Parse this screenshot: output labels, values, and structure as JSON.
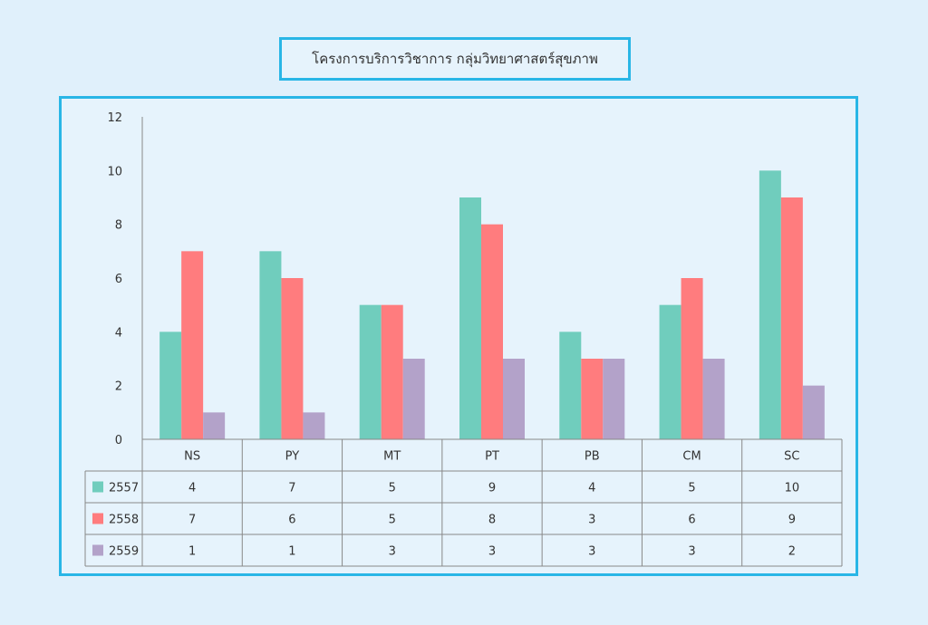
{
  "chart_data": {
    "type": "bar",
    "title": "โครงการบริการวิชาการ  กลุ่มวิทยาศาสตร์สุขภาพ",
    "categories": [
      "NS",
      "PY",
      "MT",
      "PT",
      "PB",
      "CM",
      "SC"
    ],
    "series": [
      {
        "name": "2557",
        "color": "#70cdbd",
        "values": [
          4,
          7,
          5,
          9,
          4,
          5,
          10
        ]
      },
      {
        "name": "2558",
        "color": "#ff7c7e",
        "values": [
          7,
          6,
          5,
          8,
          3,
          6,
          9
        ]
      },
      {
        "name": "2559",
        "color": "#b3a2c9",
        "values": [
          1,
          1,
          3,
          3,
          3,
          3,
          2
        ]
      }
    ],
    "ylim": [
      0,
      12
    ],
    "yticks": [
      0,
      2,
      4,
      6,
      8,
      10,
      12
    ],
    "grid": false,
    "legend": "data-table-below"
  }
}
